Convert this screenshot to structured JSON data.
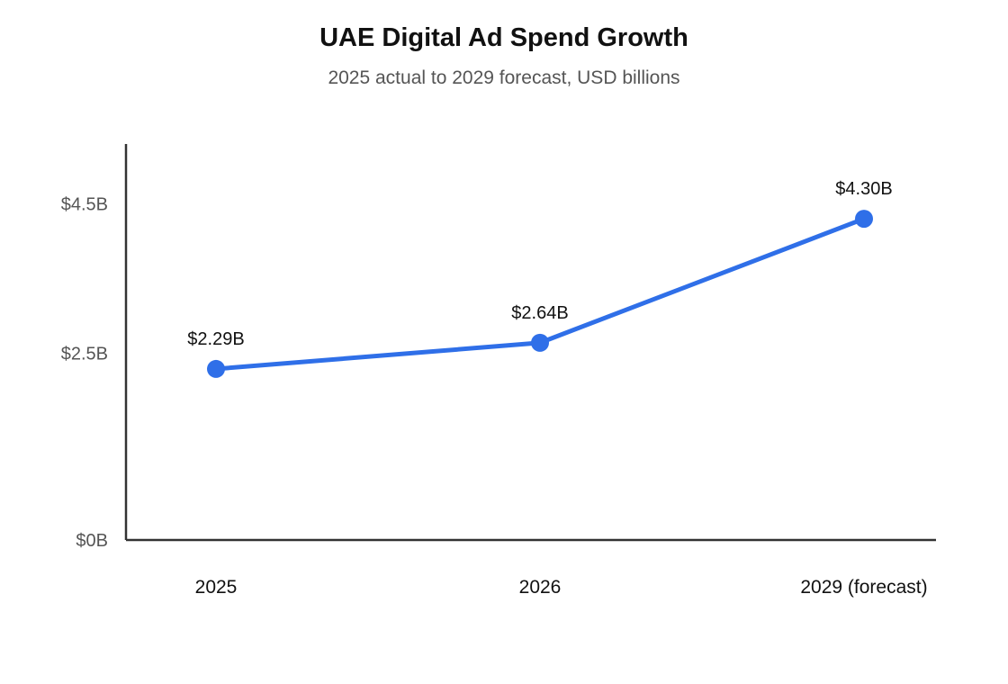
{
  "chart_data": {
    "type": "line",
    "title": "UAE Digital Ad Spend Growth",
    "subtitle": "2025 actual to 2029 forecast, USD billions",
    "xlabel": "",
    "ylabel": "",
    "categories": [
      "2025",
      "2026",
      "2029 (forecast)"
    ],
    "series": [
      {
        "values": [
          2.29,
          2.64,
          4.3
        ],
        "labels": [
          "$2.29B",
          "$2.64B",
          "$4.30B"
        ]
      }
    ],
    "y_ticks": [
      {
        "value": 0,
        "label": "$0B"
      },
      {
        "value": 2.5,
        "label": "$2.5B"
      },
      {
        "value": 4.5,
        "label": "$4.5B"
      }
    ],
    "grid": false,
    "legend": "none",
    "colors": {
      "line": "#2f6fe8",
      "axis": "#333333"
    }
  }
}
